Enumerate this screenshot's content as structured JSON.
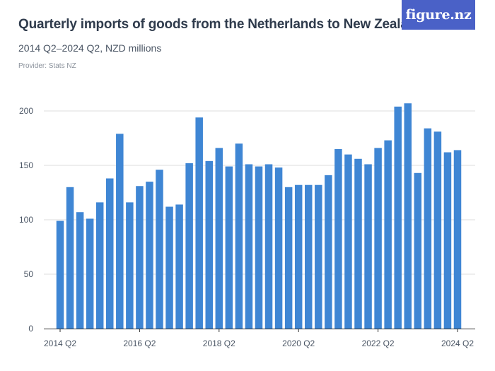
{
  "header": {
    "title": "Quarterly imports of goods from the Netherlands to New Zealand",
    "subtitle": "2014 Q2–2024 Q2, NZD millions",
    "provider": "Provider: Stats NZ"
  },
  "logo": {
    "text": "figure.nz"
  },
  "colors": {
    "bar": "#3f86d4",
    "logo_bg": "#4a61c7"
  },
  "chart_data": {
    "type": "bar",
    "title": "Quarterly imports of goods from the Netherlands to New Zealand",
    "subtitle": "2014 Q2–2024 Q2, NZD millions",
    "xlabel": "",
    "ylabel": "",
    "ylim": [
      0,
      200
    ],
    "yticks": [
      0,
      50,
      100,
      150,
      200
    ],
    "grid": true,
    "categories": [
      "2014 Q2",
      "2014 Q3",
      "2014 Q4",
      "2015 Q1",
      "2015 Q2",
      "2015 Q3",
      "2015 Q4",
      "2016 Q1",
      "2016 Q2",
      "2016 Q3",
      "2016 Q4",
      "2017 Q1",
      "2017 Q2",
      "2017 Q3",
      "2017 Q4",
      "2018 Q1",
      "2018 Q2",
      "2018 Q3",
      "2018 Q4",
      "2019 Q1",
      "2019 Q2",
      "2019 Q3",
      "2019 Q4",
      "2020 Q1",
      "2020 Q2",
      "2020 Q3",
      "2020 Q4",
      "2021 Q1",
      "2021 Q2",
      "2021 Q3",
      "2021 Q4",
      "2022 Q1",
      "2022 Q2",
      "2022 Q3",
      "2022 Q4",
      "2023 Q1",
      "2023 Q2",
      "2023 Q3",
      "2023 Q4",
      "2024 Q1",
      "2024 Q2"
    ],
    "xtick_labels": [
      "2014 Q2",
      "2016 Q2",
      "2018 Q2",
      "2020 Q2",
      "2022 Q2",
      "2024 Q2"
    ],
    "values": [
      99,
      130,
      107,
      101,
      116,
      138,
      179,
      116,
      131,
      135,
      146,
      112,
      114,
      152,
      194,
      154,
      166,
      149,
      170,
      151,
      149,
      151,
      148,
      130,
      132,
      132,
      132,
      141,
      165,
      160,
      156,
      151,
      166,
      173,
      204,
      207,
      143,
      184,
      181,
      162,
      164
    ]
  }
}
